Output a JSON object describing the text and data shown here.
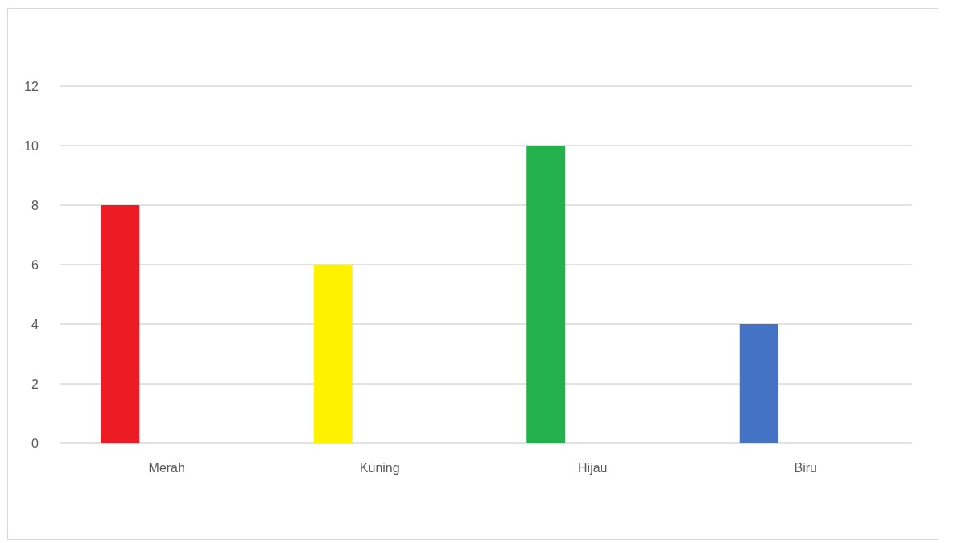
{
  "chart_data": {
    "type": "bar",
    "categories": [
      "Merah",
      "Kuning",
      "Hijau",
      "Biru"
    ],
    "series": [
      {
        "values": [
          8,
          6,
          10,
          4
        ],
        "colors": [
          "#ed1c24",
          "#fff200",
          "#22b14c",
          "#4472c4"
        ]
      }
    ],
    "ylim": [
      0,
      12
    ],
    "yticks": [
      0,
      2,
      4,
      6,
      8,
      10,
      12
    ],
    "grid": "y"
  }
}
